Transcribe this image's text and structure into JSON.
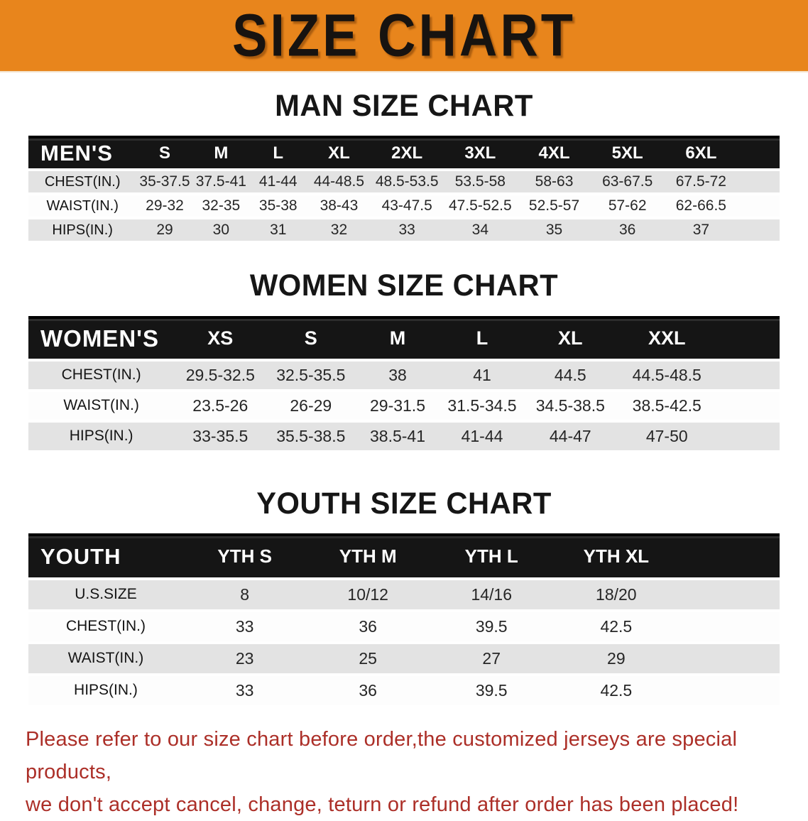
{
  "banner": {
    "title": "SIZE CHART"
  },
  "sections": {
    "men": {
      "heading": "MAN SIZE CHART"
    },
    "women": {
      "heading": "WOMEN SIZE CHART"
    },
    "youth": {
      "heading": "YOUTH SIZE CHART"
    }
  },
  "tables": {
    "men": {
      "group_label": "MEN'S",
      "columns": [
        "S",
        "M",
        "L",
        "XL",
        "2XL",
        "3XL",
        "4XL",
        "5XL",
        "6XL"
      ],
      "col_widths": [
        "14.4%",
        "7.5%",
        "7.5%",
        "7.7%",
        "8.5%",
        "9.6%",
        "9.9%",
        "9.8%",
        "9.7%",
        "9.9%",
        "5.5%"
      ],
      "rows": [
        {
          "label": "CHEST(IN.)",
          "values": [
            "35-37.5",
            "37.5-41",
            "41-44",
            "44-48.5",
            "48.5-53.5",
            "53.5-58",
            "58-63",
            "63-67.5",
            "67.5-72"
          ]
        },
        {
          "label": "WAIST(IN.)",
          "values": [
            "29-32",
            "32-35",
            "35-38",
            "38-43",
            "43-47.5",
            "47.5-52.5",
            "52.5-57",
            "57-62",
            "62-66.5"
          ]
        },
        {
          "label": "HIPS(IN.)",
          "values": [
            "29",
            "30",
            "31",
            "32",
            "33",
            "34",
            "35",
            "36",
            "37"
          ]
        }
      ]
    },
    "women": {
      "group_label": "WOMEN'S",
      "columns": [
        "XS",
        "S",
        "M",
        "L",
        "XL",
        "XXL"
      ],
      "col_widths": [
        "19.4%",
        "12.3%",
        "11.8%",
        "11.3%",
        "11.2%",
        "12.3%",
        "13.4%",
        "8.3%"
      ],
      "rows": [
        {
          "label": "CHEST(IN.)",
          "values": [
            "29.5-32.5",
            "32.5-35.5",
            "38",
            "41",
            "44.5",
            "44.5-48.5"
          ]
        },
        {
          "label": "WAIST(IN.)",
          "values": [
            "23.5-26",
            "26-29",
            "29-31.5",
            "31.5-34.5",
            "34.5-38.5",
            "38.5-42.5"
          ]
        },
        {
          "label": "HIPS(IN.)",
          "values": [
            "33-35.5",
            "35.5-38.5",
            "38.5-41",
            "41-44",
            "44-47",
            "47-50"
          ]
        }
      ]
    },
    "youth": {
      "group_label": "YOUTH",
      "columns": [
        "YTH S",
        "YTH M",
        "YTH L",
        "YTH XL"
      ],
      "col_widths": [
        "20.6%",
        "16.4%",
        "16.4%",
        "16.5%",
        "16.7%",
        "13.4%"
      ],
      "rows": [
        {
          "label": "U.S.SIZE",
          "values": [
            "8",
            "10/12",
            "14/16",
            "18/20"
          ]
        },
        {
          "label": "CHEST(IN.)",
          "values": [
            "33",
            "36",
            "39.5",
            "42.5"
          ]
        },
        {
          "label": "WAIST(IN.)",
          "values": [
            "23",
            "25",
            "27",
            "29"
          ]
        },
        {
          "label": "HIPS(IN.)",
          "values": [
            "33",
            "36",
            "39.5",
            "42.5"
          ]
        }
      ]
    }
  },
  "footer_note": {
    "line1": "Please refer to our size chart before order,the customized jerseys are special products,",
    "line2": "we don't accept cancel, change, teturn or refund after order has been placed!"
  },
  "colors": {
    "banner_orange": "#E8851C",
    "table_header_black": "#151515",
    "row_stripe_gray": "#E3E3E3",
    "note_red": "#AC2F28"
  }
}
